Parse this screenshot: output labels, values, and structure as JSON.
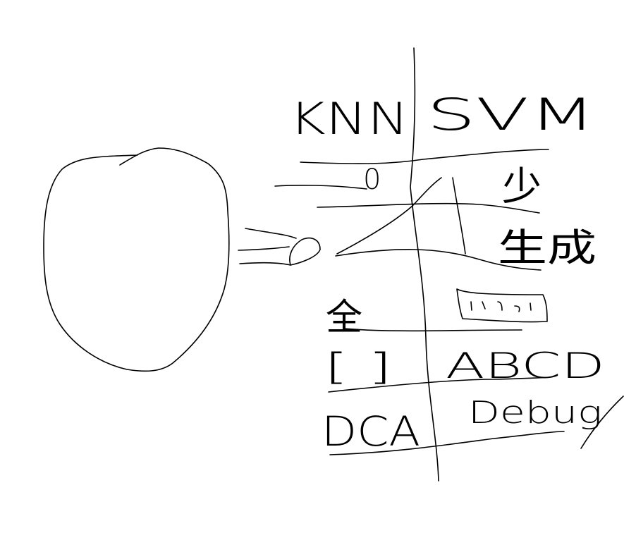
{
  "sketch": {
    "headers": {
      "left": "KNN",
      "right": "SVM"
    },
    "rows": [
      {
        "left": "0",
        "right": "少"
      },
      {
        "left": "",
        "right": "生成"
      },
      {
        "left": "全",
        "right": ""
      },
      {
        "left": "[ ]",
        "right": "ABCD"
      },
      {
        "left": "DCA",
        "right": "Debug"
      }
    ]
  },
  "colors": {
    "background": "#ffffff",
    "ink": "#000000"
  }
}
